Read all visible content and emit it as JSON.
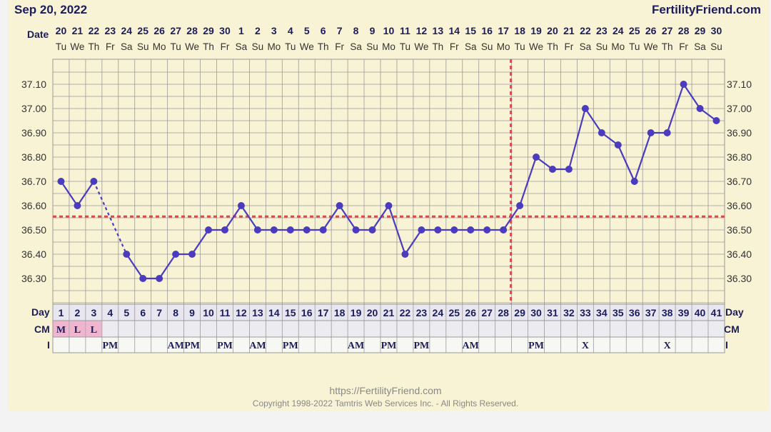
{
  "header": {
    "date_label": "Sep 20, 2022",
    "site_brand": "FertilityFriend.com"
  },
  "footer": {
    "url": "https://FertilityFriend.com",
    "copyright": "Copyright 1998-2022 Tamtris Web Services Inc. - All Rights Reserved."
  },
  "colors": {
    "line": "#4b3bbf",
    "coverline": "#d64b4b",
    "background": "#f8f3d4",
    "grid": "#9a9a9a",
    "text": "#1c1c5a",
    "pink": "#f1b6cf"
  },
  "chart_data": {
    "type": "line",
    "row_labels": {
      "date": "Date",
      "day": "Day",
      "cm": "CM",
      "i": "I"
    },
    "date_numbers": [
      "20",
      "21",
      "22",
      "23",
      "24",
      "25",
      "26",
      "27",
      "28",
      "29",
      "30",
      "1",
      "2",
      "3",
      "4",
      "5",
      "6",
      "7",
      "8",
      "9",
      "10",
      "11",
      "12",
      "13",
      "14",
      "15",
      "16",
      "17",
      "18",
      "19",
      "20",
      "21",
      "22",
      "23",
      "24",
      "25",
      "26",
      "27",
      "28",
      "29",
      "30"
    ],
    "weekdays": [
      "Tu",
      "We",
      "Th",
      "Fr",
      "Sa",
      "Su",
      "Mo",
      "Tu",
      "We",
      "Th",
      "Fr",
      "Sa",
      "Su",
      "Mo",
      "Tu",
      "We",
      "Th",
      "Fr",
      "Sa",
      "Su",
      "Mo",
      "Tu",
      "We",
      "Th",
      "Fr",
      "Sa",
      "Su",
      "Mo",
      "Tu",
      "We",
      "Th",
      "Fr",
      "Sa",
      "Su",
      "Mo",
      "Tu",
      "We",
      "Th",
      "Fr",
      "Sa",
      "Su"
    ],
    "days": [
      1,
      2,
      3,
      4,
      5,
      6,
      7,
      8,
      9,
      10,
      11,
      12,
      13,
      14,
      15,
      16,
      17,
      18,
      19,
      20,
      21,
      22,
      23,
      24,
      25,
      26,
      27,
      28,
      29,
      30,
      31,
      32,
      33,
      34,
      35,
      36,
      37,
      38,
      39,
      40,
      41
    ],
    "temps": [
      36.7,
      36.6,
      36.7,
      null,
      36.4,
      36.3,
      36.3,
      36.4,
      36.4,
      36.5,
      36.5,
      36.6,
      36.5,
      36.5,
      36.5,
      36.5,
      36.5,
      36.6,
      36.5,
      36.5,
      36.6,
      36.4,
      36.5,
      36.5,
      36.5,
      36.5,
      36.5,
      36.5,
      36.6,
      36.8,
      36.75,
      36.75,
      37.0,
      36.9,
      36.85,
      36.7,
      36.9,
      36.9,
      37.1,
      37.0,
      36.95
    ],
    "y_ticks": [
      "37.10",
      "37.00",
      "36.90",
      "36.80",
      "36.70",
      "36.60",
      "36.50",
      "36.40",
      "36.30"
    ],
    "ylim": [
      36.22,
      37.18
    ],
    "coverline_temp": 36.555,
    "ovulation_day": 28,
    "cm": [
      "M",
      "L",
      "L",
      "",
      "",
      "",
      "",
      "",
      "",
      "",
      "",
      "",
      "",
      "",
      "",
      "",
      "",
      "",
      "",
      "",
      "",
      "",
      "",
      "",
      "",
      "",
      "",
      "",
      "",
      "",
      "",
      "",
      "",
      "",
      "",
      "",
      "",
      "",
      "",
      "",
      ""
    ],
    "intercourse": [
      "",
      "",
      "",
      "PM",
      "",
      "",
      "",
      "AM",
      "PM",
      "",
      "PM",
      "",
      "AM",
      "",
      "PM",
      "",
      "",
      "",
      "AM",
      "",
      "PM",
      "",
      "PM",
      "",
      "",
      "AM",
      "",
      "",
      "",
      "PM",
      "",
      "",
      "X",
      "",
      "",
      "",
      "",
      "X",
      "",
      "",
      ""
    ]
  }
}
